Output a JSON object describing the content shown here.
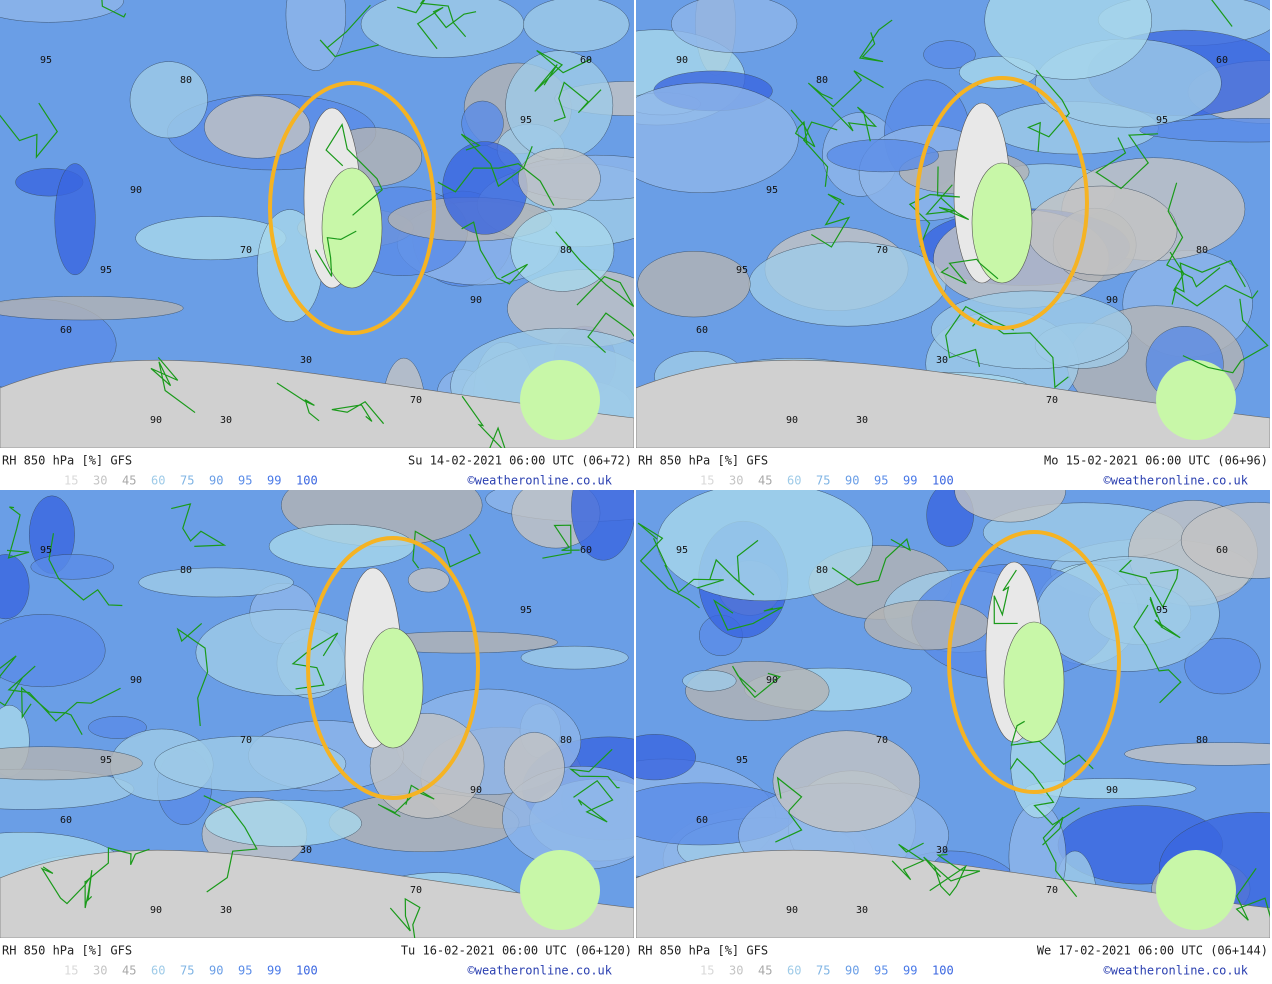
{
  "panels": [
    {
      "title": "RH 850 hPa [%] GFS",
      "time": "Su 14-02-2021 06:00 UTC (06+72)",
      "credit": "©weatheronline.co.uk",
      "contour_labels": [
        95,
        90,
        80,
        70,
        60,
        30,
        95,
        90,
        80,
        70,
        95,
        30,
        60,
        90
      ]
    },
    {
      "title": "RH 850 hPa [%] GFS",
      "time": "Mo 15-02-2021 06:00 UTC (06+96)",
      "credit": "©weatheronline.co.uk",
      "contour_labels": [
        90,
        95,
        80,
        70,
        60,
        30,
        95,
        90,
        80,
        70,
        95,
        30,
        60,
        90
      ]
    },
    {
      "title": "RH 850 hPa [%] GFS",
      "time": "Tu 16-02-2021 06:00 UTC (06+120)",
      "credit": "©weatheronline.co.uk",
      "contour_labels": [
        95,
        90,
        80,
        70,
        60,
        30,
        95,
        90,
        80,
        70,
        95,
        30,
        60,
        90
      ]
    },
    {
      "title": "RH 850 hPa [%] GFS",
      "time": "We 17-02-2021 06:00 UTC (06+144)",
      "credit": "©weatheronline.co.uk",
      "contour_labels": [
        95,
        90,
        80,
        70,
        60,
        30,
        95,
        90,
        80,
        70,
        95,
        30,
        60,
        90
      ]
    }
  ],
  "legend": [
    {
      "value": 15,
      "color": "#d8d8d8"
    },
    {
      "value": 30,
      "color": "#c4c4c4"
    },
    {
      "value": 45,
      "color": "#a8a8a8"
    },
    {
      "value": 60,
      "color": "#9fcbe8"
    },
    {
      "value": 75,
      "color": "#7fb4e4"
    },
    {
      "value": 90,
      "color": "#6a9ee6"
    },
    {
      "value": 95,
      "color": "#5a8ce8"
    },
    {
      "value": 99,
      "color": "#4a7ae8"
    },
    {
      "value": 100,
      "color": "#3a66e0"
    }
  ]
}
